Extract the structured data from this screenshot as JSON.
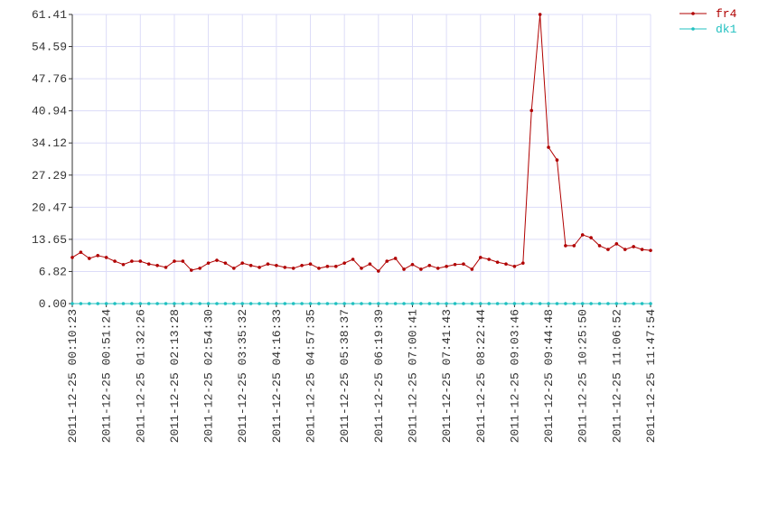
{
  "chart_data": {
    "type": "line",
    "categories": [
      "2011-12-25 00:10:23",
      null,
      null,
      null,
      "2011-12-25 00:51:24",
      null,
      null,
      null,
      "2011-12-25 01:32:26",
      null,
      null,
      null,
      "2011-12-25 02:13:28",
      null,
      null,
      null,
      "2011-12-25 02:54:30",
      null,
      null,
      null,
      "2011-12-25 03:35:32",
      null,
      null,
      null,
      "2011-12-25 04:16:33",
      null,
      null,
      null,
      "2011-12-25 04:57:35",
      null,
      null,
      null,
      "2011-12-25 05:38:37",
      null,
      null,
      null,
      "2011-12-25 06:19:39",
      null,
      null,
      null,
      "2011-12-25 07:00:41",
      null,
      null,
      null,
      "2011-12-25 07:41:43",
      null,
      null,
      null,
      "2011-12-25 08:22:44",
      null,
      null,
      null,
      "2011-12-25 09:03:46",
      null,
      null,
      null,
      "2011-12-25 09:44:48",
      null,
      null,
      null,
      "2011-12-25 10:25:50",
      null,
      null,
      null,
      "2011-12-25 11:06:52",
      null,
      null,
      null,
      "2011-12-25 11:47:54"
    ],
    "series": [
      {
        "name": "fr4",
        "color": "#b00000",
        "values": [
          9.8,
          10.9,
          9.6,
          10.2,
          9.8,
          9.0,
          8.3,
          9.0,
          9.0,
          8.4,
          8.1,
          7.7,
          9.0,
          9.0,
          7.1,
          7.5,
          8.6,
          9.2,
          8.6,
          7.5,
          8.6,
          8.1,
          7.7,
          8.4,
          8.1,
          7.7,
          7.5,
          8.1,
          8.4,
          7.5,
          7.9,
          7.9,
          8.6,
          9.4,
          7.5,
          8.4,
          6.9,
          9.0,
          9.6,
          7.3,
          8.3,
          7.3,
          8.1,
          7.5,
          7.9,
          8.3,
          8.4,
          7.3,
          9.8,
          9.4,
          8.8,
          8.4,
          7.9,
          8.6,
          41.0,
          61.41,
          33.2,
          30.5,
          12.3,
          12.3,
          14.6,
          14.0,
          12.3,
          11.5,
          12.7,
          11.5,
          12.1,
          11.5,
          11.3
        ]
      },
      {
        "name": "dk1",
        "color": "#20c0c0",
        "values": [
          0,
          0,
          0,
          0,
          0,
          0,
          0,
          0,
          0,
          0,
          0,
          0,
          0,
          0,
          0,
          0,
          0,
          0,
          0,
          0,
          0,
          0,
          0,
          0,
          0,
          0,
          0,
          0,
          0,
          0,
          0,
          0,
          0,
          0,
          0,
          0,
          0,
          0,
          0,
          0,
          0,
          0,
          0,
          0,
          0,
          0,
          0,
          0,
          0,
          0,
          0,
          0,
          0,
          0,
          0,
          0,
          0,
          0,
          0,
          0,
          0,
          0,
          0,
          0,
          0,
          0,
          0,
          0,
          0
        ]
      }
    ],
    "ylim": [
      0,
      61.41
    ],
    "yticks": [
      {
        "value": 0,
        "label": "0.00"
      },
      6.82,
      13.65,
      20.47,
      27.29,
      34.12,
      40.94,
      47.76,
      54.59,
      61.41
    ],
    "grid": true
  }
}
